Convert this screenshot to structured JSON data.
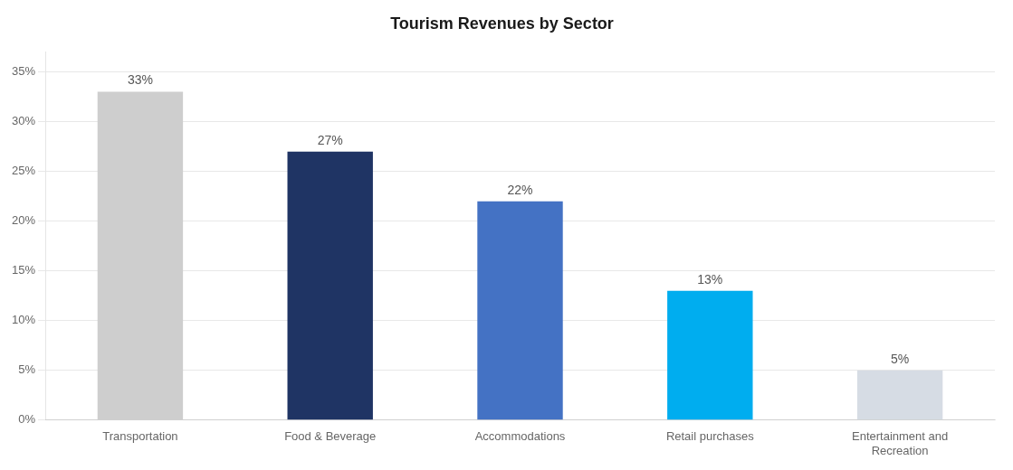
{
  "chart_data": {
    "type": "bar",
    "title": "Tourism Revenues by Sector",
    "categories": [
      "Transportation",
      "Food & Beverage",
      "Accommodations",
      "Retail purchases",
      "Entertainment and\nRecreation"
    ],
    "values": [
      33,
      27,
      22,
      13,
      5
    ],
    "value_labels": [
      "33%",
      "27%",
      "22%",
      "13%",
      "5%"
    ],
    "colors": [
      "#cecece",
      "#1f3464",
      "#4472c4",
      "#00adef",
      "#d6dce4"
    ],
    "ylim": [
      0,
      37
    ],
    "yticks": [
      {
        "value": 0,
        "label": "0%"
      },
      {
        "value": 5,
        "label": "5%"
      },
      {
        "value": 10,
        "label": "10%"
      },
      {
        "value": 15,
        "label": "15%"
      },
      {
        "value": 20,
        "label": "20%"
      },
      {
        "value": 25,
        "label": "25%"
      },
      {
        "value": 30,
        "label": "30%"
      },
      {
        "value": 35,
        "label": "35%"
      }
    ],
    "grid": true,
    "data_labels": true
  }
}
